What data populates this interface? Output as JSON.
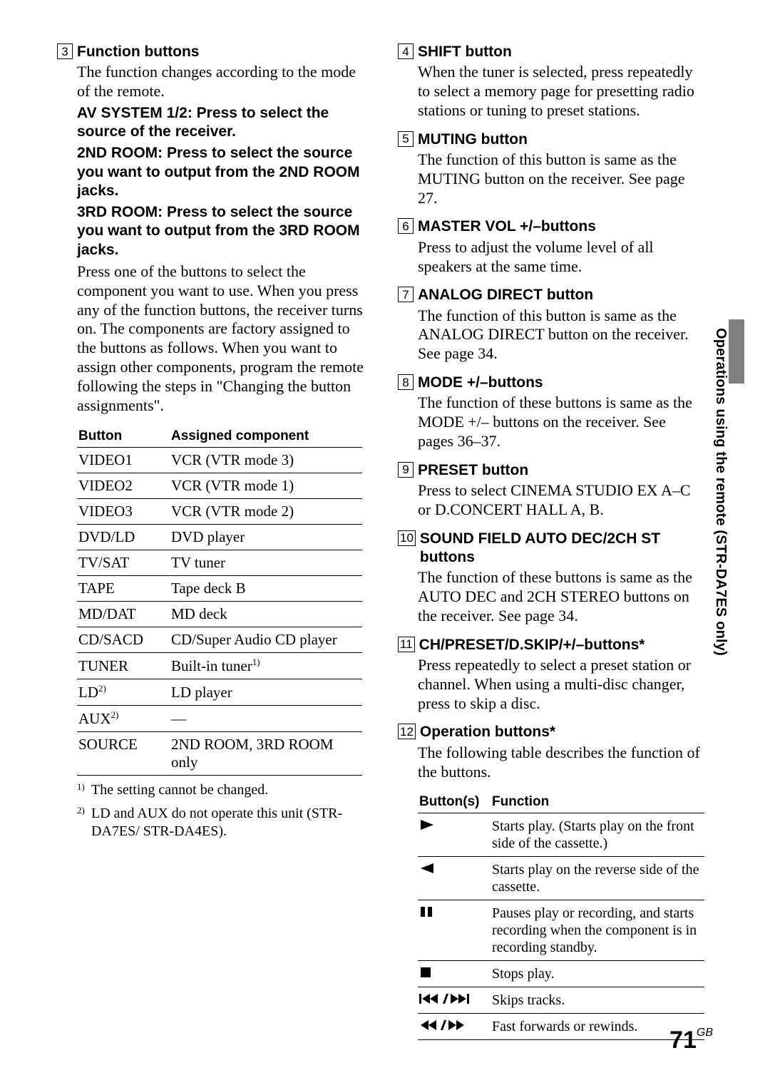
{
  "side_label": "Operations using the remote (STR-DA7ES only)",
  "page_number": "71",
  "page_suffix": "GB",
  "left": {
    "items": [
      {
        "num": "3",
        "title": "Function buttons",
        "body": "The function changes according to the mode of the remote.",
        "subs": [
          "AV SYSTEM 1/2: Press to select the source of the receiver.",
          "2ND ROOM: Press to select the source you want to output from the 2ND ROOM jacks.",
          "3RD ROOM: Press to select the source you want to output from the 3RD ROOM jacks."
        ],
        "body2": "Press one of the buttons to select the component you want to use. When you press any of the function buttons, the receiver turns on. The components are factory assigned to the buttons as follows. When you want to assign other components, program the remote following the steps in \"Changing the button assignments\"."
      }
    ],
    "table": {
      "headers": [
        "Button",
        "Assigned component"
      ],
      "rows": [
        {
          "b": "VIDEO1",
          "c": "VCR (VTR mode 3)"
        },
        {
          "b": "VIDEO2",
          "c": "VCR (VTR mode 1)"
        },
        {
          "b": "VIDEO3",
          "c": "VCR (VTR mode 2)"
        },
        {
          "b": "DVD/LD",
          "c": "DVD player"
        },
        {
          "b": "TV/SAT",
          "c": "TV tuner"
        },
        {
          "b": "TAPE",
          "c": "Tape deck B"
        },
        {
          "b": "MD/DAT",
          "c": "MD deck"
        },
        {
          "b": "CD/SACD",
          "c": "CD/Super Audio CD player"
        },
        {
          "b": "TUNER",
          "c": "Built-in tuner",
          "csup": "1)"
        },
        {
          "b": "LD",
          "bsup": "2)",
          "c": "LD player"
        },
        {
          "b": "AUX",
          "bsup": "2)",
          "c": "—"
        },
        {
          "b": "SOURCE",
          "c": "2ND ROOM, 3RD ROOM only"
        }
      ]
    },
    "footnotes": [
      {
        "n": "1)",
        "t": "The setting cannot be changed."
      },
      {
        "n": "2)",
        "t": "LD and AUX do not operate this unit (STR-DA7ES/ STR-DA4ES)."
      }
    ]
  },
  "right": {
    "items": [
      {
        "num": "4",
        "title": "SHIFT button",
        "body": "When the tuner is selected, press repeatedly to select a memory page for presetting radio stations or tuning to preset stations."
      },
      {
        "num": "5",
        "title": "MUTING button",
        "body": "The function of this button is same as the MUTING button on the receiver. See page 27."
      },
      {
        "num": "6",
        "title": "MASTER VOL +/–buttons",
        "body": "Press to adjust the volume level of all speakers at the same time."
      },
      {
        "num": "7",
        "title": "ANALOG DIRECT button",
        "body": "The function of this button is same as the ANALOG DIRECT button on the receiver. See page 34."
      },
      {
        "num": "8",
        "title": "MODE +/–buttons",
        "body": "The function of these buttons is same as the MODE +/– buttons on the receiver. See pages 36–37."
      },
      {
        "num": "9",
        "title": "PRESET button",
        "body": "Press to select CINEMA STUDIO EX A–C or D.CONCERT HALL A, B."
      },
      {
        "num": "10",
        "title": "SOUND FIELD AUTO DEC/2CH ST buttons",
        "body": "The function of these buttons is same as the AUTO DEC and 2CH STEREO buttons on the receiver. See page 34."
      },
      {
        "num": "11",
        "title": "CH/PRESET/D.SKIP/+/–buttons*",
        "body": "Press repeatedly to select a preset station or channel. When using a multi-disc changer, press to skip a disc."
      },
      {
        "num": "12",
        "title": "Operation buttons*",
        "body": "The following table describes the function of the buttons."
      }
    ],
    "ops_table": {
      "headers": [
        "Button(s)",
        "Function"
      ],
      "rows": [
        {
          "icon": "play",
          "f": "Starts play. (Starts play on the front side of the cassette.)"
        },
        {
          "icon": "play-rev",
          "f": "Starts play on the reverse side of the cassette."
        },
        {
          "icon": "pause",
          "f": "Pauses play or recording, and starts recording when the component is in recording standby."
        },
        {
          "icon": "stop",
          "f": "Stops play."
        },
        {
          "icon": "skip",
          "f": "Skips tracks."
        },
        {
          "icon": "ffrw",
          "f": "Fast forwards or rewinds."
        }
      ]
    }
  }
}
